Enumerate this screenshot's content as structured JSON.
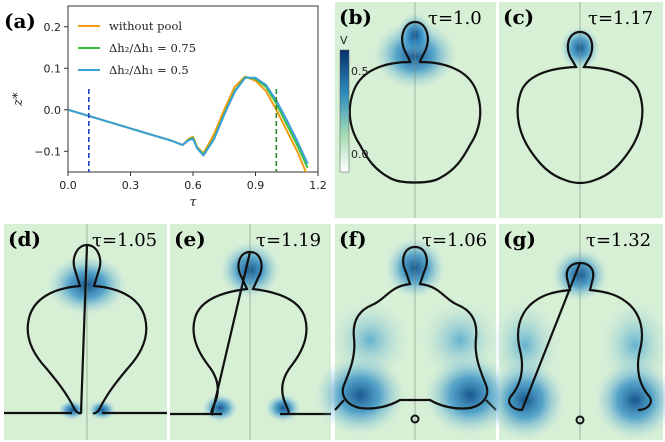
{
  "colors": {
    "without_pool": "#f39c12",
    "ratio_075": "#3cc13c",
    "ratio_05": "#3b9fd8",
    "vline_blue": "#1f3fbf",
    "vline_green": "#2a8a2a",
    "field_bg": "#d7efd5",
    "field_dark": "#0d4f8c",
    "interface": "#111111"
  },
  "chart_data": [
    {
      "panel": "(a)",
      "type": "line",
      "xlabel": "τ",
      "ylabel": "z*",
      "xlim": [
        0.0,
        1.2
      ],
      "ylim": [
        -0.15,
        0.25
      ],
      "xticks": [
        "0.0",
        "0.3",
        "0.6",
        "0.9",
        "1.2"
      ],
      "yticks": [
        "0.2",
        "0.1",
        "0.0",
        "−0.1"
      ],
      "grid": false,
      "legend_position": "top-left",
      "series": [
        {
          "name": "without pool",
          "color_key": "without_pool",
          "x": [
            0.0,
            0.1,
            0.2,
            0.3,
            0.4,
            0.5,
            0.55,
            0.58,
            0.6,
            0.62,
            0.65,
            0.7,
            0.75,
            0.8,
            0.85,
            0.9,
            0.95,
            1.0,
            1.05,
            1.1,
            1.15
          ],
          "y": [
            0.0,
            -0.015,
            -0.03,
            -0.045,
            -0.06,
            -0.075,
            -0.085,
            -0.07,
            -0.065,
            -0.09,
            -0.105,
            -0.06,
            0.0,
            0.055,
            0.08,
            0.07,
            0.045,
            0.0,
            -0.05,
            -0.1,
            -0.16
          ]
        },
        {
          "name": "Δh₂/Δh₁ = 0.75",
          "color_key": "ratio_075",
          "x": [
            0.0,
            0.1,
            0.2,
            0.3,
            0.4,
            0.5,
            0.55,
            0.58,
            0.6,
            0.62,
            0.65,
            0.7,
            0.75,
            0.8,
            0.85,
            0.9,
            0.95,
            1.0,
            1.05,
            1.1,
            1.15
          ],
          "y": [
            0.0,
            -0.015,
            -0.03,
            -0.045,
            -0.06,
            -0.075,
            -0.085,
            -0.072,
            -0.068,
            -0.092,
            -0.108,
            -0.07,
            -0.01,
            0.045,
            0.078,
            0.075,
            0.055,
            0.015,
            -0.035,
            -0.085,
            -0.14
          ]
        },
        {
          "name": "Δh₂/Δh₁ = 0.5",
          "color_key": "ratio_05",
          "x": [
            0.0,
            0.1,
            0.2,
            0.3,
            0.4,
            0.5,
            0.55,
            0.58,
            0.6,
            0.62,
            0.65,
            0.7,
            0.75,
            0.8,
            0.85,
            0.9,
            0.95,
            1.0,
            1.05,
            1.1,
            1.15
          ],
          "y": [
            0.0,
            -0.015,
            -0.03,
            -0.045,
            -0.06,
            -0.075,
            -0.085,
            -0.073,
            -0.07,
            -0.093,
            -0.11,
            -0.072,
            -0.012,
            0.043,
            0.077,
            0.077,
            0.06,
            0.022,
            -0.025,
            -0.075,
            -0.13
          ]
        }
      ],
      "vlines": [
        {
          "x": 0.1,
          "color_key": "vline_blue",
          "style": "dashed"
        },
        {
          "x": 1.0,
          "color_key": "vline_green",
          "style": "dashed"
        }
      ]
    },
    {
      "panel": "(b)",
      "type": "heatmap",
      "tau": "τ=1.0",
      "colorbar": {
        "label": "V",
        "max_label": "0.5",
        "min_label": "0.0"
      }
    },
    {
      "panel": "(c)",
      "type": "heatmap",
      "tau": "τ=1.17"
    },
    {
      "panel": "(d)",
      "type": "heatmap",
      "tau": "τ=1.05"
    },
    {
      "panel": "(e)",
      "type": "heatmap",
      "tau": "τ=1.19"
    },
    {
      "panel": "(f)",
      "type": "heatmap",
      "tau": "τ=1.06"
    },
    {
      "panel": "(g)",
      "type": "heatmap",
      "tau": "τ=1.32"
    }
  ]
}
